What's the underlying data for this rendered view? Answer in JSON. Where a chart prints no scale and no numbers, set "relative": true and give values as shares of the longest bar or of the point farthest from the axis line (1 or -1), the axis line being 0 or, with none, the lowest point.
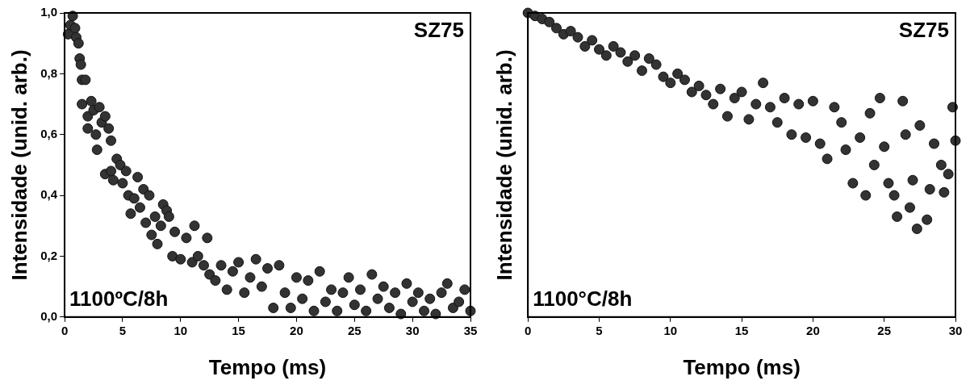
{
  "chart_data": [
    {
      "type": "scatter",
      "xlabel": "Tempo (ms)",
      "ylabel": "Intensidade (unid. arb.)",
      "annotations": [
        "SZ75",
        "1100ºC/8h"
      ],
      "marker": "circle",
      "legend": false,
      "grid": false,
      "xlim": [
        0,
        35
      ],
      "xticks": [
        0,
        5,
        10,
        15,
        20,
        25,
        30,
        35
      ],
      "ylim": [
        0,
        1
      ],
      "yticks": [
        {
          "value": 0,
          "label": "0,0"
        },
        {
          "value": 0.2,
          "label": "0,2"
        },
        {
          "value": 0.4,
          "label": "0,4"
        },
        {
          "value": 0.6,
          "label": "0,6"
        },
        {
          "value": 0.8,
          "label": "0,8"
        },
        {
          "value": 1,
          "label": "1,0"
        }
      ],
      "series": [
        {
          "color": "#333333",
          "x": [
            0.3,
            0.5,
            0.7,
            0.9,
            1.0,
            1.2,
            1.3,
            1.4,
            1.5,
            1.8,
            2.0,
            2.0,
            1.5,
            2.3,
            2.5,
            2.7,
            2.8,
            3.0,
            3.2,
            3.5,
            3.5,
            3.8,
            4.0,
            4.0,
            4.2,
            4.5,
            4.8,
            5.0,
            5.3,
            5.5,
            5.7,
            6.0,
            6.3,
            6.5,
            6.8,
            7.0,
            7.3,
            7.5,
            7.8,
            8.0,
            8.3,
            8.5,
            8.8,
            9.0,
            9.3,
            9.5,
            10.0,
            10.5,
            11.0,
            11.2,
            11.5,
            12.0,
            12.3,
            12.5,
            13.0,
            13.5,
            14.0,
            14.5,
            15.0,
            15.5,
            16.0,
            16.5,
            17.0,
            17.5,
            18.0,
            18.5,
            19.0,
            19.5,
            20.0,
            20.5,
            21.0,
            21.5,
            22.0,
            22.5,
            23.0,
            23.5,
            24.0,
            24.5,
            25.0,
            25.5,
            26.0,
            26.5,
            27.0,
            27.5,
            28.0,
            28.5,
            29.0,
            29.5,
            30.0,
            30.5,
            31.0,
            31.5,
            32.0,
            32.5,
            33.0,
            33.5,
            34.0,
            34.5,
            35.0
          ],
          "values": [
            0.93,
            0.96,
            0.99,
            0.95,
            0.92,
            0.9,
            0.85,
            0.83,
            0.78,
            0.78,
            0.66,
            0.62,
            0.7,
            0.71,
            0.68,
            0.6,
            0.55,
            0.69,
            0.64,
            0.66,
            0.47,
            0.62,
            0.58,
            0.48,
            0.45,
            0.52,
            0.5,
            0.44,
            0.48,
            0.4,
            0.34,
            0.39,
            0.46,
            0.36,
            0.42,
            0.31,
            0.4,
            0.27,
            0.33,
            0.24,
            0.3,
            0.37,
            0.35,
            0.33,
            0.2,
            0.28,
            0.19,
            0.26,
            0.18,
            0.3,
            0.2,
            0.17,
            0.26,
            0.14,
            0.12,
            0.17,
            0.09,
            0.15,
            0.18,
            0.08,
            0.13,
            0.19,
            0.1,
            0.16,
            0.03,
            0.17,
            0.08,
            0.03,
            0.13,
            0.06,
            0.12,
            0.02,
            0.15,
            0.05,
            0.09,
            0.02,
            0.08,
            0.13,
            0.04,
            0.09,
            0.02,
            0.14,
            0.06,
            0.1,
            0.03,
            0.08,
            0.01,
            0.11,
            0.05,
            0.08,
            0.02,
            0.06,
            0.01,
            0.08,
            0.11,
            0.03,
            0.05,
            0.09,
            0.02
          ]
        }
      ]
    },
    {
      "type": "scatter",
      "xlabel": "Tempo (ms)",
      "ylabel": "Intensidade (unid. arb.)",
      "annotations": [
        "SZ75",
        "1100°C/8h"
      ],
      "marker": "circle",
      "legend": false,
      "grid": false,
      "relative": true,
      "xlim": [
        0,
        30
      ],
      "xticks": [
        0,
        5,
        10,
        15,
        20,
        25,
        30
      ],
      "series": [
        {
          "color": "#333333",
          "x": [
            0,
            0.5,
            1,
            1.5,
            2,
            2.5,
            3,
            3.5,
            4,
            4.5,
            5,
            5.5,
            6,
            6.5,
            7,
            7.5,
            8,
            8.5,
            9,
            9.5,
            10,
            10.5,
            11,
            11.5,
            12,
            12.5,
            13,
            13.5,
            14,
            14.5,
            15,
            15.5,
            16,
            16.5,
            17,
            17.5,
            18,
            18.5,
            19,
            19.5,
            20,
            20.5,
            21,
            21.5,
            22,
            22.3,
            22.8,
            23.3,
            23.7,
            24,
            24.3,
            24.7,
            25,
            25.3,
            25.7,
            25.9,
            26.3,
            26.5,
            26.8,
            27.0,
            27.3,
            27.5,
            28,
            28.2,
            28.5,
            29,
            29.2,
            29.5,
            29.8,
            30
          ],
          "values": [
            1.0,
            0.99,
            0.98,
            0.97,
            0.95,
            0.93,
            0.94,
            0.92,
            0.89,
            0.91,
            0.88,
            0.86,
            0.89,
            0.87,
            0.84,
            0.86,
            0.81,
            0.85,
            0.83,
            0.79,
            0.77,
            0.8,
            0.78,
            0.74,
            0.76,
            0.73,
            0.7,
            0.75,
            0.66,
            0.72,
            0.74,
            0.65,
            0.7,
            0.77,
            0.69,
            0.64,
            0.72,
            0.6,
            0.7,
            0.59,
            0.71,
            0.57,
            0.52,
            0.69,
            0.64,
            0.55,
            0.44,
            0.59,
            0.4,
            0.67,
            0.5,
            0.72,
            0.56,
            0.44,
            0.4,
            0.33,
            0.71,
            0.6,
            0.36,
            0.45,
            0.29,
            0.63,
            0.32,
            0.42,
            0.57,
            0.5,
            0.41,
            0.47,
            0.69,
            0.58
          ]
        }
      ]
    }
  ]
}
